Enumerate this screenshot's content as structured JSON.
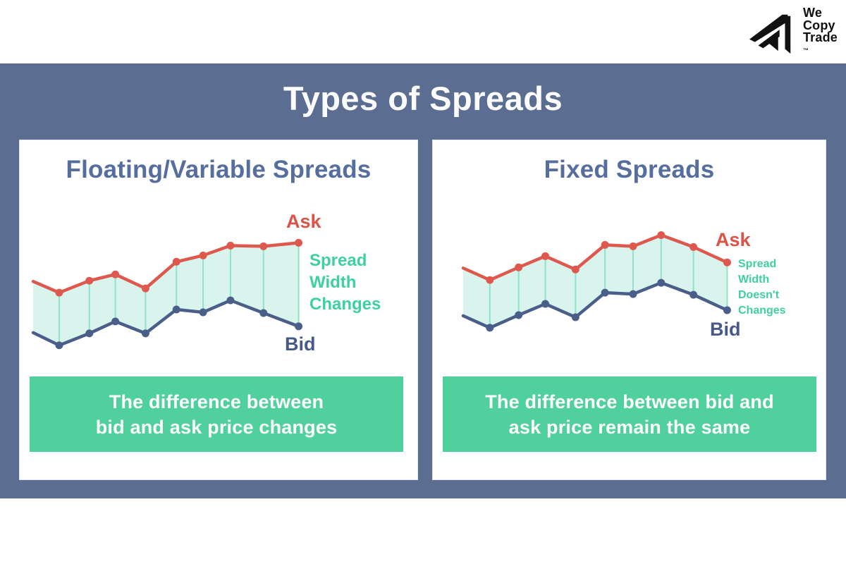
{
  "logo": {
    "lines": [
      "We",
      "Copy",
      "Trade"
    ],
    "trademark": "™"
  },
  "title": "Types of Spreads",
  "colors": {
    "slate_bg": "#5b6e91",
    "card_heading": "#566e9e",
    "title_text": "#fcfcfc",
    "ask": "#df584d",
    "bid": "#4a5e8a",
    "spread_green": "#3ed0a0",
    "caption_bg": "#4fd09c",
    "band_fill": "#d9f4ec",
    "tick": "#8ee3c9",
    "logo": "#111111"
  },
  "panels": [
    {
      "heading": "Floating/Variable Spreads",
      "ask_label": "Ask",
      "bid_label": "Bid",
      "spread_label_lines": [
        "Spread",
        "Width",
        "Changes"
      ],
      "caption_lines": [
        "The difference between",
        "bid and ask price changes"
      ]
    },
    {
      "heading": "Fixed Spreads",
      "ask_label": "Ask",
      "bid_label": "Bid",
      "spread_label_lines": [
        "Spread",
        "Width",
        "Doesn't",
        "Changes"
      ],
      "caption_lines": [
        "The difference between bid and",
        "ask price remain the same"
      ]
    }
  ],
  "chart_data": [
    {
      "type": "line",
      "title": "Floating/Variable Spreads",
      "legend": [
        "Ask",
        "Bid"
      ],
      "axes_shown": false,
      "y_units": "px (illustrative, y grows downward)",
      "x": [
        19,
        56,
        99,
        136,
        179,
        223,
        261,
        300,
        347,
        397
      ],
      "series": [
        {
          "name": "Ask",
          "y": [
            201,
            217,
            200,
            191,
            211,
            173,
            164,
            150,
            151,
            146
          ]
        },
        {
          "name": "Bid",
          "y": [
            274,
            292,
            275,
            258,
            275,
            241,
            245,
            228,
            246,
            265
          ]
        }
      ],
      "band": "filled spread between Ask and Bid; width varies and widens to the right",
      "dot_from": 1
    },
    {
      "type": "line",
      "title": "Fixed Spreads",
      "legend": [
        "Ask",
        "Bid"
      ],
      "axes_shown": false,
      "y_units": "px (illustrative, y grows downward)",
      "x": [
        43,
        81,
        122,
        160,
        203,
        245,
        285,
        325,
        371,
        419
      ],
      "series": [
        {
          "name": "Ask",
          "y": [
            182,
            199,
            181,
            165,
            184,
            149,
            151,
            135,
            152,
            174
          ]
        },
        {
          "name": "Bid",
          "y": [
            250,
            267,
            249,
            233,
            252,
            217,
            219,
            203,
            220,
            242
          ]
        }
      ],
      "band": "filled spread between Ask and Bid; width stays constant",
      "dot_from": 1
    }
  ]
}
